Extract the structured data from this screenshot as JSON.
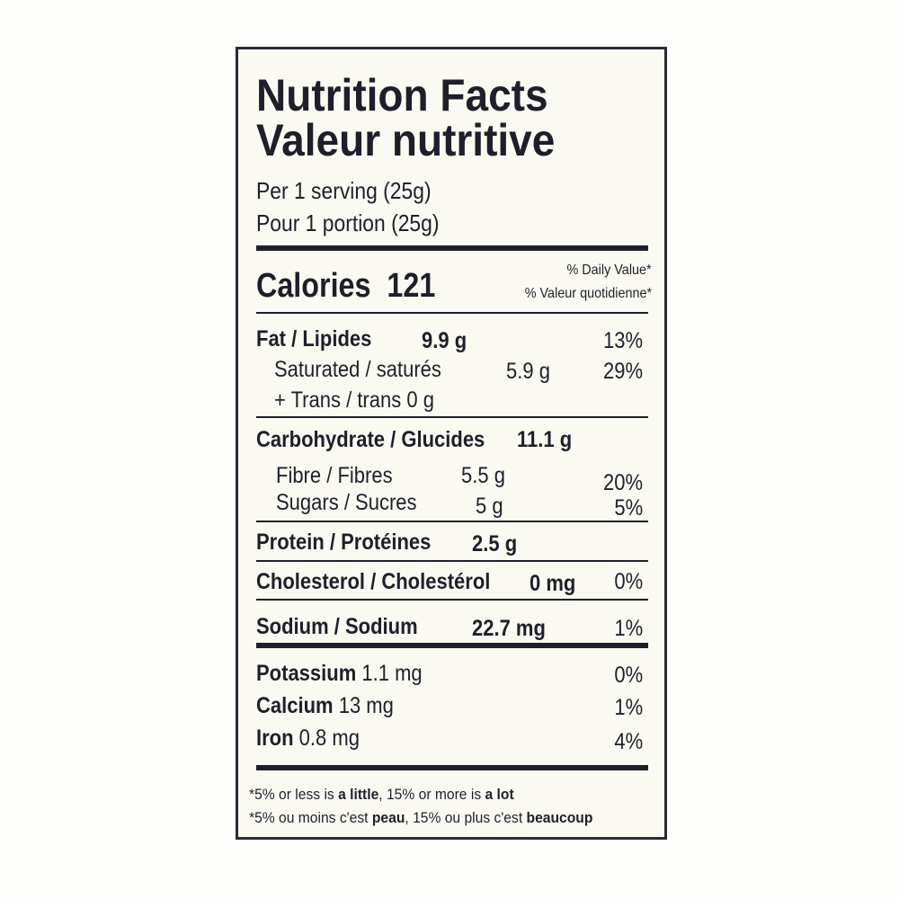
{
  "title_en": "Nutrition Facts",
  "title_fr": "Valeur nutritive",
  "serving_en": "Per 1 serving (25g)",
  "serving_fr": "Pour 1 portion (25g)",
  "calories": {
    "label": "Calories",
    "value": "121"
  },
  "dv_header_en": "% Daily Value*",
  "dv_header_fr": "% Valeur quotidienne*",
  "nutrients": {
    "fat": {
      "label": "Fat / Lipides",
      "amount": "9.9 g",
      "dv": "13%"
    },
    "saturated": {
      "label": "Saturated / saturés",
      "amount": "5.9 g",
      "dv": "29%"
    },
    "trans": {
      "label": "+ Trans / trans 0 g"
    },
    "carbohydrate": {
      "label": "Carbohydrate / Glucides",
      "amount": "11.1 g"
    },
    "fibre": {
      "label": "Fibre / Fibres",
      "amount": "5.5 g",
      "dv": "20%"
    },
    "sugars": {
      "label": "Sugars / Sucres",
      "amount": "5 g",
      "dv": "5%"
    },
    "protein": {
      "label": "Protein / Protéines",
      "amount": "2.5 g"
    },
    "cholesterol": {
      "label": "Cholesterol / Cholestérol",
      "amount": "0 mg",
      "dv": "0%"
    },
    "sodium": {
      "label": "Sodium / Sodium",
      "amount": "22.7 mg",
      "dv": "1%"
    },
    "potassium": {
      "label": "Potassium",
      "amount": "1.1 mg",
      "dv": "0%"
    },
    "calcium": {
      "label": "Calcium",
      "amount": "13 mg",
      "dv": "1%"
    },
    "iron": {
      "label": "Iron",
      "amount": "0.8 mg",
      "dv": "4%"
    }
  },
  "footnote_en": {
    "a": "*5% or less is ",
    "b": "a little",
    "c": ", 15% or more is ",
    "d": "a lot"
  },
  "footnote_fr": {
    "a": "*5% ou moins c'est ",
    "b": "peau",
    "c": ", 15% ou plus c'est ",
    "d": "beaucoup"
  }
}
